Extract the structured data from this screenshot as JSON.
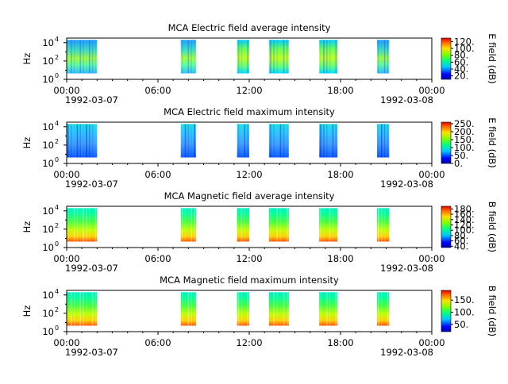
{
  "chart_data": [
    {
      "type": "heatmap",
      "title": "MCA  Electric field average intensity",
      "ylabel": "Hz",
      "colorbar_label": "E field (dB)",
      "colorbar_ticks": [
        "20.",
        "40.",
        "60.",
        "80.",
        "100.",
        "120."
      ],
      "colorbar_range": [
        10,
        130
      ],
      "yticks": [
        "10",
        "10",
        "10"
      ],
      "yexp": [
        "0",
        "2",
        "4"
      ],
      "xticks": [
        "00:00",
        "06:00",
        "12:00",
        "18:00",
        "00:00"
      ],
      "date_start": "1992-03-07",
      "date_end": "1992-03-08",
      "xlim_hours": [
        0,
        24
      ],
      "ylim_log10": [
        0,
        4.5
      ],
      "segments": [
        {
          "start": 0.0,
          "end": 2.0,
          "level": "low-mixed"
        },
        {
          "start": 7.5,
          "end": 8.5,
          "level": "low-mixed"
        },
        {
          "start": 11.2,
          "end": 12.0,
          "level": "mid"
        },
        {
          "start": 13.3,
          "end": 14.6,
          "level": "mid"
        },
        {
          "start": 16.6,
          "end": 17.8,
          "level": "mid"
        },
        {
          "start": 20.4,
          "end": 21.2,
          "level": "low-mixed"
        }
      ]
    },
    {
      "type": "heatmap",
      "title": "MCA  Electric field maximum intensity",
      "ylabel": "Hz",
      "colorbar_label": "E field (dB)",
      "colorbar_ticks": [
        "0.",
        "50.",
        "100.",
        "150.",
        "200.",
        "250."
      ],
      "colorbar_range": [
        0,
        260
      ],
      "yticks": [
        "10",
        "10",
        "10"
      ],
      "yexp": [
        "0",
        "2",
        "4"
      ],
      "xticks": [
        "00:00",
        "06:00",
        "12:00",
        "18:00",
        "00:00"
      ],
      "date_start": "1992-03-07",
      "date_end": "1992-03-08",
      "xlim_hours": [
        0,
        24
      ],
      "ylim_log10": [
        0,
        4.5
      ],
      "segments": [
        {
          "start": 0.0,
          "end": 2.0,
          "level": "low"
        },
        {
          "start": 7.5,
          "end": 8.5,
          "level": "low"
        },
        {
          "start": 11.2,
          "end": 12.0,
          "level": "low"
        },
        {
          "start": 13.3,
          "end": 14.6,
          "level": "low"
        },
        {
          "start": 16.6,
          "end": 17.8,
          "level": "low"
        },
        {
          "start": 20.4,
          "end": 21.2,
          "level": "low"
        }
      ]
    },
    {
      "type": "heatmap",
      "title": "MCA  Magnetic field average intensity",
      "ylabel": "Hz",
      "colorbar_label": "B field (dB)",
      "colorbar_ticks": [
        "40.",
        "60.",
        "80.",
        "100.",
        "120.",
        "140.",
        "160.",
        "180."
      ],
      "colorbar_range": [
        35,
        190
      ],
      "yticks": [
        "10",
        "10",
        "10"
      ],
      "yexp": [
        "0",
        "2",
        "4"
      ],
      "xticks": [
        "00:00",
        "06:00",
        "12:00",
        "18:00",
        "00:00"
      ],
      "date_start": "1992-03-07",
      "date_end": "1992-03-08",
      "xlim_hours": [
        0,
        24
      ],
      "ylim_log10": [
        0,
        4.5
      ],
      "segments": [
        {
          "start": 0.0,
          "end": 2.0,
          "level": "high"
        },
        {
          "start": 7.5,
          "end": 8.5,
          "level": "high"
        },
        {
          "start": 11.2,
          "end": 12.0,
          "level": "high"
        },
        {
          "start": 13.3,
          "end": 14.6,
          "level": "high"
        },
        {
          "start": 16.6,
          "end": 17.8,
          "level": "high"
        },
        {
          "start": 20.4,
          "end": 21.2,
          "level": "high"
        }
      ]
    },
    {
      "type": "heatmap",
      "title": "MCA  Magnetic field maximum intensity",
      "ylabel": "Hz",
      "colorbar_label": "B field (dB)",
      "colorbar_ticks": [
        "50.",
        "100.",
        "150."
      ],
      "colorbar_range": [
        20,
        190
      ],
      "yticks": [
        "10",
        "10",
        "10"
      ],
      "yexp": [
        "0",
        "2",
        "4"
      ],
      "xticks": [
        "00:00",
        "06:00",
        "12:00",
        "18:00",
        "00:00"
      ],
      "date_start": "1992-03-07",
      "date_end": "1992-03-08",
      "xlim_hours": [
        0,
        24
      ],
      "ylim_log10": [
        0,
        4.5
      ],
      "segments": [
        {
          "start": 0.0,
          "end": 2.0,
          "level": "high"
        },
        {
          "start": 7.5,
          "end": 8.5,
          "level": "high"
        },
        {
          "start": 11.2,
          "end": 12.0,
          "level": "high"
        },
        {
          "start": 13.3,
          "end": 14.6,
          "level": "high"
        },
        {
          "start": 16.6,
          "end": 17.8,
          "level": "high"
        },
        {
          "start": 20.4,
          "end": 21.2,
          "level": "high"
        }
      ]
    }
  ]
}
